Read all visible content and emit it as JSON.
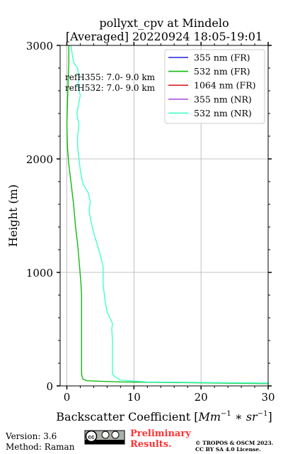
{
  "chart_data": {
    "type": "line",
    "title_line1": "pollyxt_cpv at Mindelo",
    "title_line2": "[Averaged] 20220924 18:05-19:01",
    "xlabel_text": "Backscatter Coefficient [",
    "xlabel_math": "Mm",
    "xlabel_sup1": "−1",
    "xlabel_mid": " ∗ sr",
    "xlabel_sup2": "−1",
    "xlabel_end": "]",
    "ylabel": "Height (m)",
    "xlim": [
      -1,
      30
    ],
    "ylim": [
      0,
      3000
    ],
    "xticks": [
      0,
      10,
      20,
      30
    ],
    "yticks": [
      0,
      1000,
      2000,
      3000
    ],
    "grid": true,
    "legend_position": "top-right",
    "annotations": [
      "refH355:  7.0- 9.0 km",
      "refH532:  7.0- 9.0 km"
    ],
    "series": [
      {
        "name": "355 nm (FR)",
        "color": "#2222dd",
        "points": []
      },
      {
        "name": "532 nm (FR)",
        "color": "#11bb11",
        "points": [
          [
            30,
            20
          ],
          [
            8,
            35
          ],
          [
            3,
            45
          ],
          [
            2.4,
            60
          ],
          [
            2.2,
            100
          ],
          [
            2.2,
            300
          ],
          [
            2.2,
            600
          ],
          [
            2.2,
            800
          ],
          [
            2.1,
            900
          ],
          [
            1.9,
            1050
          ],
          [
            1.6,
            1250
          ],
          [
            1.3,
            1400
          ],
          [
            1.0,
            1600
          ],
          [
            0.6,
            1800
          ],
          [
            0.3,
            1950
          ],
          [
            0.1,
            2100
          ],
          [
            0.0,
            2300
          ],
          [
            0.1,
            2500
          ],
          [
            0.2,
            2700
          ],
          [
            0.3,
            2850
          ],
          [
            0.3,
            3000
          ]
        ]
      },
      {
        "name": "1064 nm (FR)",
        "color": "#dd2222",
        "points": []
      },
      {
        "name": "355 nm (NR)",
        "color": "#aa55dd",
        "points": []
      },
      {
        "name": "532 nm (NR)",
        "color": "#44ffcc",
        "points": [
          [
            30,
            25
          ],
          [
            12,
            35
          ],
          [
            8,
            50
          ],
          [
            7.2,
            80
          ],
          [
            6.8,
            100
          ],
          [
            6.8,
            200
          ],
          [
            6.8,
            400
          ],
          [
            6.7,
            500
          ],
          [
            6.8,
            550
          ],
          [
            6.4,
            600
          ],
          [
            6.0,
            650
          ],
          [
            5.7,
            750
          ],
          [
            5.4,
            900
          ],
          [
            5.4,
            1050
          ],
          [
            5.0,
            1150
          ],
          [
            4.5,
            1250
          ],
          [
            4.0,
            1350
          ],
          [
            3.6,
            1450
          ],
          [
            3.3,
            1550
          ],
          [
            3.5,
            1620
          ],
          [
            3.2,
            1700
          ],
          [
            2.4,
            1780
          ],
          [
            2.0,
            1900
          ],
          [
            1.8,
            2000
          ],
          [
            1.6,
            2100
          ],
          [
            1.6,
            2200
          ],
          [
            1.8,
            2300
          ],
          [
            1.5,
            2400
          ],
          [
            1.8,
            2500
          ],
          [
            2.0,
            2560
          ],
          [
            1.6,
            2650
          ],
          [
            1.8,
            2700
          ],
          [
            1.6,
            2800
          ],
          [
            1.0,
            2850
          ],
          [
            0.8,
            2920
          ],
          [
            0.6,
            3000
          ]
        ]
      }
    ]
  },
  "footer": {
    "version": "Version: 3.6",
    "method": "Method: Raman",
    "license_badge": "cc by sa",
    "prelim_line1": "Preliminary",
    "prelim_line2": "Results.",
    "copyright_line1": "© TROPOS & OSCM 2023.",
    "copyright_line2": "CC BY SA 4.0 License."
  }
}
